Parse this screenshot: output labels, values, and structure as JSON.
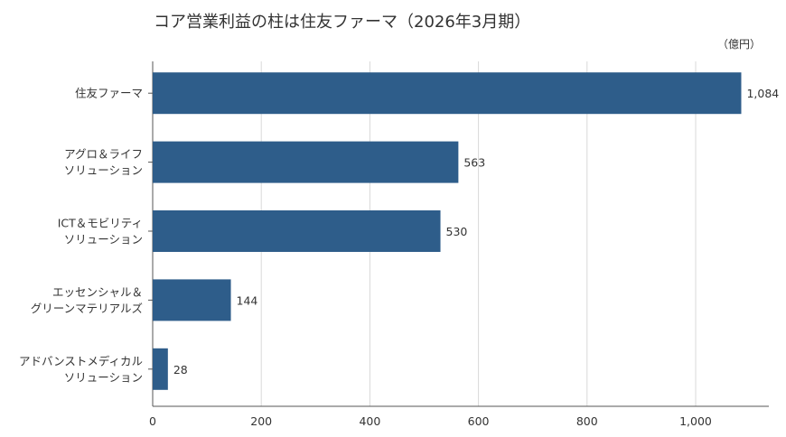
{
  "chart_data": {
    "type": "bar",
    "orientation": "horizontal",
    "title": "コア営業利益の柱は住友ファーマ（2026年3月期）",
    "unit": "（億円）",
    "categories": [
      [
        "住友ファーマ"
      ],
      [
        "アグロ＆ライフ",
        "ソリューション"
      ],
      [
        "ICT＆モビリティ",
        "ソリューション"
      ],
      [
        "エッセンシャル＆",
        "グリーンマテリアルズ"
      ],
      [
        "アドバンストメディカル",
        "ソリューション"
      ]
    ],
    "values": [
      1084,
      563,
      530,
      144,
      28
    ],
    "data_labels": [
      "1,084",
      "563",
      "530",
      "144",
      "28"
    ],
    "xlim": [
      0,
      1100
    ],
    "xticks": [
      0,
      200,
      400,
      600,
      800,
      1000
    ],
    "xtick_labels": [
      "0",
      "200",
      "400",
      "600",
      "800",
      "1,000"
    ],
    "grid": true,
    "bar_color": "#2e5d8a"
  }
}
